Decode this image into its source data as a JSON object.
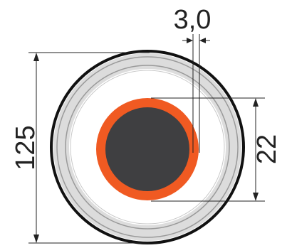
{
  "dimensions": {
    "outer_diameter": "125",
    "core_diameter": "22",
    "thickness": "3,0"
  },
  "colors": {
    "background": "#ffffff",
    "outer_jacket": "#111111",
    "insulation_ring": "#dcdcdc",
    "inner_lines": "#9a9a9a",
    "conductor_sheath": "#f05a22",
    "conductor_core": "#3f3f41",
    "dimension_line": "#222222"
  }
}
